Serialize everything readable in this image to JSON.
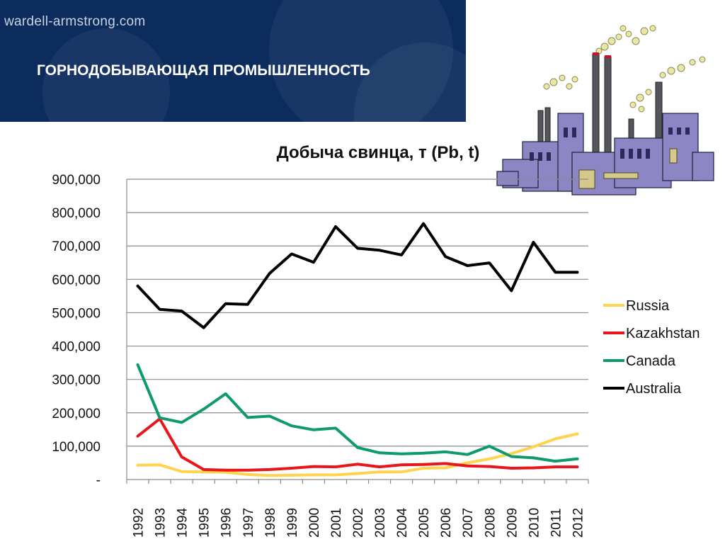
{
  "header": {
    "site_url": "wardell-armstrong.com",
    "title": "ГОРНОДОБЫВАЮЩАЯ ПРОМЫШЛЕННОСТЬ"
  },
  "illustration": {
    "icon": "factory-icon"
  },
  "chart_data": {
    "type": "line",
    "title": "Добыча свинца, т (Pb, t)",
    "xlabel": "",
    "ylabel": "",
    "ylim": [
      0,
      900000
    ],
    "yticks": [
      0,
      100000,
      200000,
      300000,
      400000,
      500000,
      600000,
      700000,
      800000,
      900000
    ],
    "ytick_labels": [
      "-",
      "100,000",
      "200,000",
      "300,000",
      "400,000",
      "500,000",
      "600,000",
      "700,000",
      "800,000",
      "900,000"
    ],
    "grid": true,
    "legend_position": "right",
    "categories": [
      "1992",
      "1993",
      "1994",
      "1995",
      "1996",
      "1997",
      "1998",
      "1999",
      "2000",
      "2001",
      "2002",
      "2003",
      "2004",
      "2005",
      "2006",
      "2007",
      "2008",
      "2009",
      "2010",
      "2011",
      "2012"
    ],
    "series": [
      {
        "name": "Russia",
        "color": "#ffd34d",
        "values": [
          43000,
          44000,
          24000,
          23000,
          22000,
          15000,
          12000,
          13000,
          14000,
          14000,
          18000,
          23000,
          23000,
          34000,
          35000,
          50000,
          62000,
          78000,
          98000,
          122000,
          137000
        ]
      },
      {
        "name": "Kazakhstan",
        "color": "#e8151b",
        "values": [
          130000,
          182000,
          68000,
          30000,
          28000,
          28000,
          30000,
          34000,
          39000,
          38000,
          46000,
          38000,
          44000,
          45000,
          48000,
          41000,
          39000,
          34000,
          35000,
          38000,
          38000
        ]
      },
      {
        "name": "Canada",
        "color": "#0f9a6e",
        "values": [
          344000,
          185000,
          171000,
          211000,
          257000,
          186000,
          190000,
          161000,
          149000,
          154000,
          96000,
          80000,
          77000,
          79000,
          83000,
          75000,
          100000,
          69000,
          65000,
          55000,
          62000
        ]
      },
      {
        "name": "Australia",
        "color": "#000000",
        "values": [
          580000,
          510000,
          505000,
          455000,
          527000,
          525000,
          618000,
          676000,
          651000,
          758000,
          693000,
          687000,
          673000,
          767000,
          668000,
          641000,
          649000,
          566000,
          711000,
          621000,
          621000
        ]
      }
    ]
  }
}
